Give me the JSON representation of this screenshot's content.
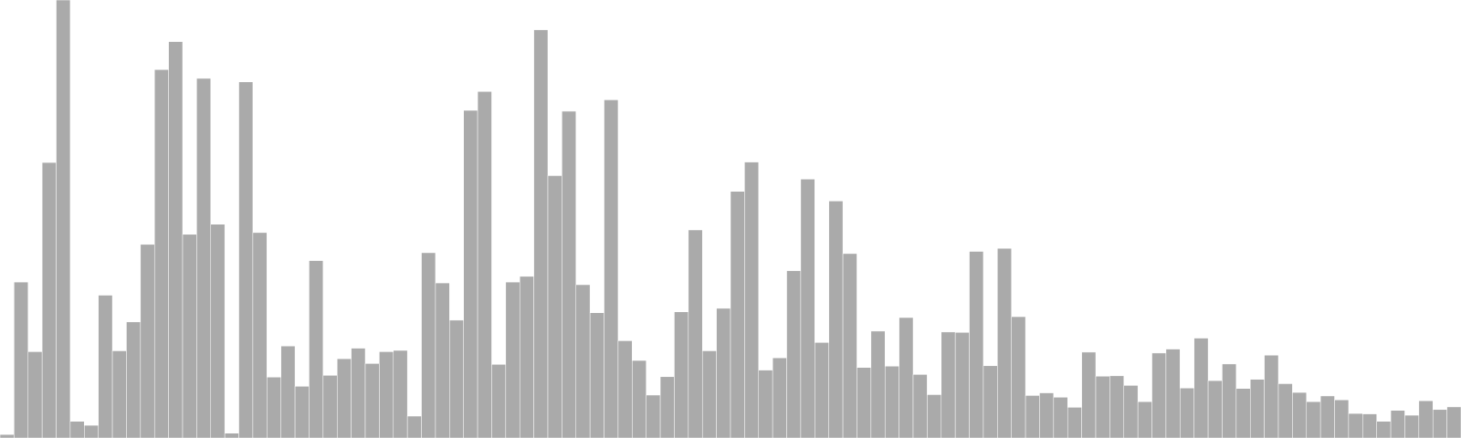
{
  "chart_data": {
    "type": "bar",
    "title": "",
    "xlabel": "",
    "ylabel": "",
    "ylim": [
      0,
      100
    ],
    "grid": false,
    "legend": "none",
    "bar_color": "#aaaaaa",
    "values": [
      0.8,
      35.6,
      19.7,
      62.9,
      100.0,
      3.8,
      2.9,
      32.6,
      19.9,
      26.5,
      44.2,
      84.1,
      90.5,
      46.5,
      82.1,
      48.8,
      1.1,
      81.3,
      46.9,
      13.9,
      21.0,
      11.8,
      40.5,
      14.3,
      18.1,
      20.5,
      17.0,
      19.7,
      20.0,
      5.0,
      42.3,
      35.4,
      26.9,
      74.8,
      79.1,
      16.8,
      35.6,
      36.9,
      93.2,
      59.9,
      74.6,
      35.0,
      28.6,
      77.2,
      22.2,
      17.7,
      9.8,
      14.0,
      28.8,
      47.5,
      19.9,
      29.6,
      56.3,
      63.0,
      15.5,
      18.3,
      38.2,
      59.1,
      21.8,
      54.1,
      42.1,
      16.1,
      24.4,
      16.4,
      27.5,
      14.5,
      9.9,
      24.2,
      24.1,
      42.6,
      16.5,
      43.3,
      27.7,
      9.7,
      10.3,
      9.3,
      7.0,
      19.6,
      14.1,
      14.2,
      12.0,
      8.3,
      19.4,
      20.3,
      11.4,
      22.8,
      13.1,
      16.9,
      11.3,
      13.4,
      18.9,
      12.4,
      10.4,
      8.3,
      9.6,
      8.7,
      5.6,
      5.5,
      3.8,
      6.3,
      5.2,
      8.5,
      6.5,
      7.1
    ]
  }
}
